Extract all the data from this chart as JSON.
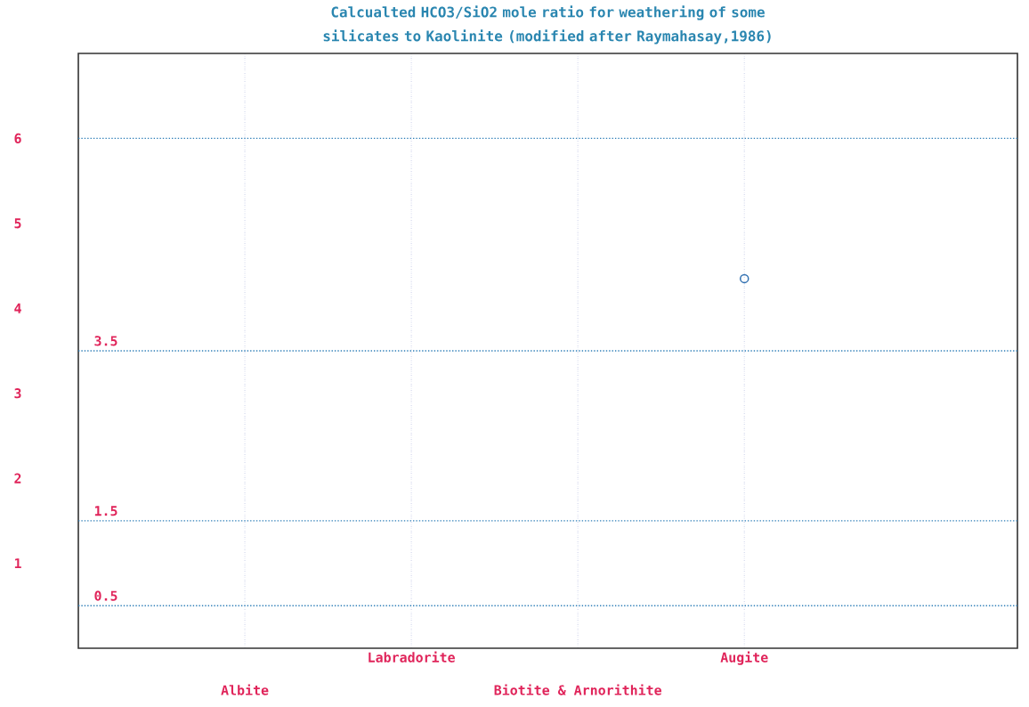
{
  "chart_data": {
    "type": "scatter",
    "title": "Calcualted HCO3/SiO2 mole ratio for weathering of some silicates to Kaolinite (modified after Raymahasay,1986)",
    "categories": [
      "Albite",
      "Labradorite",
      "Biotite & Arnorithite",
      "Augite"
    ],
    "values": [
      null,
      null,
      null,
      4.35
    ],
    "color": "#2f6fb0",
    "marker": "circle",
    "ylim": [
      0,
      7
    ],
    "yticks": [
      1,
      2,
      3,
      4,
      5,
      6
    ],
    "grid": "x",
    "ref_lines": [
      {
        "axis": "y",
        "value": 0.5,
        "label": "0.5",
        "color": "#2f7fb8",
        "line_style": "dotted"
      },
      {
        "axis": "y",
        "value": 1.5,
        "label": "1.5",
        "color": "#2f7fb8",
        "line_style": "dotted"
      },
      {
        "axis": "y",
        "value": 3.5,
        "label": "3.5",
        "color": "#2f7fb8",
        "line_style": "dotted"
      },
      {
        "axis": "y",
        "value": 6,
        "color": "#2f7fb8",
        "line_style": "dotted"
      }
    ]
  }
}
